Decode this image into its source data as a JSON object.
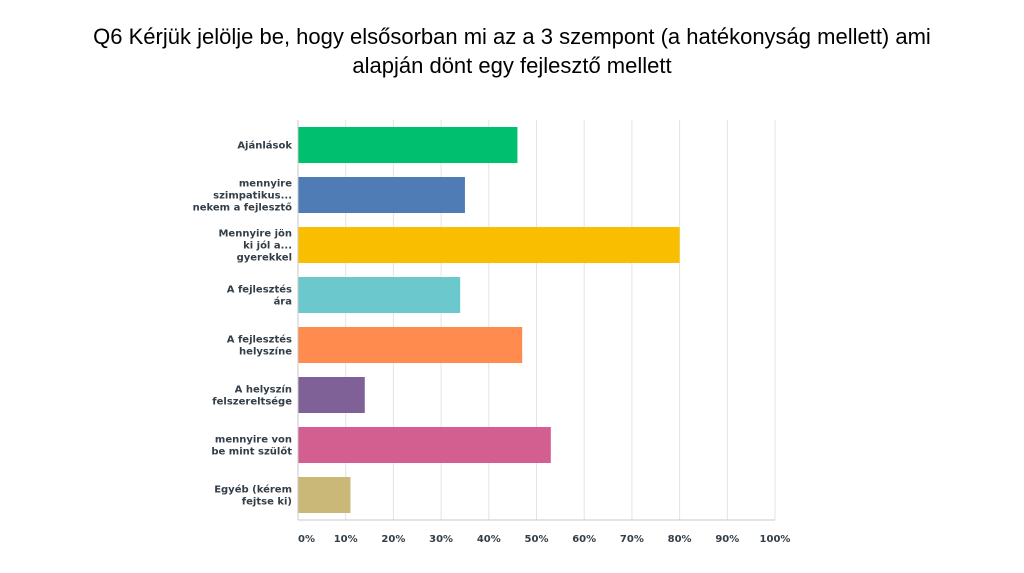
{
  "title": {
    "line1": "Q6 Kérjük jelölje be, hogy elsősorban mi az a 3 szempont (a hatékonyság mellett) ami",
    "line2": "alapján dönt egy fejlesztő mellett"
  },
  "chart_data": {
    "type": "bar",
    "orientation": "horizontal",
    "categories": [
      [
        "Ajánlások"
      ],
      [
        "mennyire",
        "szimpatikus...",
        "nekem a fejlesztő"
      ],
      [
        "Mennyire jön",
        "ki jól a...",
        "gyerekkel"
      ],
      [
        "A fejlesztés",
        "ára"
      ],
      [
        "A fejlesztés",
        "helyszíne"
      ],
      [
        "A helyszín",
        "felszereltsége"
      ],
      [
        "mennyire von",
        "be mint szülőt"
      ],
      [
        "Egyéb (kérem",
        "fejtse ki)"
      ]
    ],
    "values": [
      46,
      35,
      80,
      34,
      47,
      14,
      53,
      11
    ],
    "unit": "%",
    "colors": [
      "#00bf6f",
      "#507cb6",
      "#f9be00",
      "#6bc8cd",
      "#ff8b4f",
      "#7f6197",
      "#d25f90",
      "#c9b877"
    ],
    "xlim": [
      0,
      100
    ],
    "x_ticks": [
      "0%",
      "10%",
      "20%",
      "30%",
      "40%",
      "50%",
      "60%",
      "70%",
      "80%",
      "90%",
      "100%"
    ],
    "grid": true,
    "legend": "none"
  }
}
